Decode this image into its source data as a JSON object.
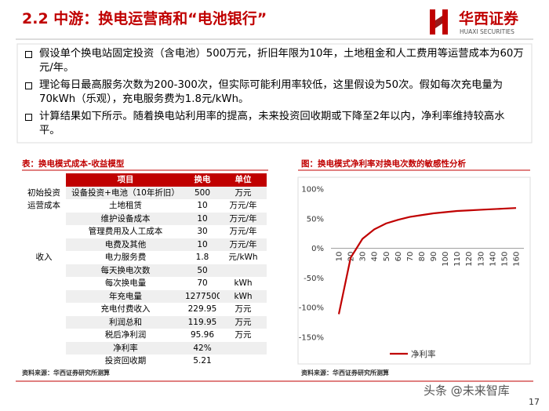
{
  "header": {
    "title": "2.2 中游：换电运营商和“电池银行”",
    "logo_cn": "华西证券",
    "logo_en": "HUAXI SECURITIES"
  },
  "bullets": [
    "假设单个换电站固定投资（含电池）500万元，折旧年限为10年，土地租金和人工费用等运营成本为60万元/年。",
    "理论每日最高服务次数为200-300次，但实际可能利用率较低，这里假设为50次。假如每次充电量为70kWh（乐观），充电服务费为1.8元/kWh。",
    "计算结果如下所示。随着换电站利用率的提高，未来投资回收期或下降至2年以内，净利率维持较高水平。"
  ],
  "table": {
    "title": "表：换电模式成本-收益模型",
    "header": [
      "项目",
      "换电",
      "单位"
    ],
    "rows": [
      [
        "初始投资",
        "设备投资+电池（10年折旧）",
        500,
        "万元"
      ],
      [
        "运营成本",
        "土地租赁",
        10,
        "万元/年"
      ],
      [
        null,
        "维护设备成本",
        10,
        "万元/年"
      ],
      [
        null,
        "管理费用及人工成本",
        30,
        "万元/年"
      ],
      [
        null,
        "电费及其他",
        10,
        "万元/年"
      ],
      [
        "收入",
        "电力服务费",
        1.8,
        "元/kWh"
      ],
      [
        null,
        "每天换电次数",
        50,
        null
      ],
      [
        null,
        "每次换电量",
        70,
        "kWh"
      ],
      [
        null,
        "年充电量",
        1277500,
        "kWh"
      ],
      [
        null,
        "充电付费收入",
        229.95,
        "万元"
      ],
      [
        null,
        "利润总和",
        119.95,
        "万元"
      ],
      [
        null,
        "税后净利润",
        95.96,
        "万元"
      ],
      [
        null,
        "净利率",
        "42%",
        null
      ],
      [
        null,
        "投资回收期",
        5.21,
        null
      ]
    ],
    "source": "资料来源：华西证券研究所测算"
  },
  "chart_data": {
    "type": "line",
    "title": "图：换电模式净利率对换电次数的敏感性分析",
    "categories": [
      "10",
      "20",
      "30",
      "40",
      "50",
      "60",
      "70",
      "80",
      "90",
      "100",
      "110",
      "120",
      "130",
      "140",
      "150",
      "160"
    ],
    "series": [
      {
        "name": "净利率",
        "color": "#c00000",
        "values": [
          -111,
          -16,
          16,
          32,
          42,
          48,
          53,
          56,
          59,
          61,
          63,
          64,
          65,
          66,
          67,
          68
        ]
      }
    ],
    "ylim": [
      -150,
      100
    ],
    "yticks": [
      {
        "value": -150,
        "label": "-150%"
      },
      {
        "value": -100,
        "label": "-100%"
      },
      {
        "value": -50,
        "label": "-50%"
      },
      {
        "value": 0,
        "label": "0%"
      },
      {
        "value": 50,
        "label": "50%"
      },
      {
        "value": 100,
        "label": "100%"
      }
    ],
    "legend": "bottom",
    "source": "资料来源：华西证券研究所测算"
  },
  "footer": {
    "page": "17",
    "watermark": "头条 @未来智库"
  }
}
